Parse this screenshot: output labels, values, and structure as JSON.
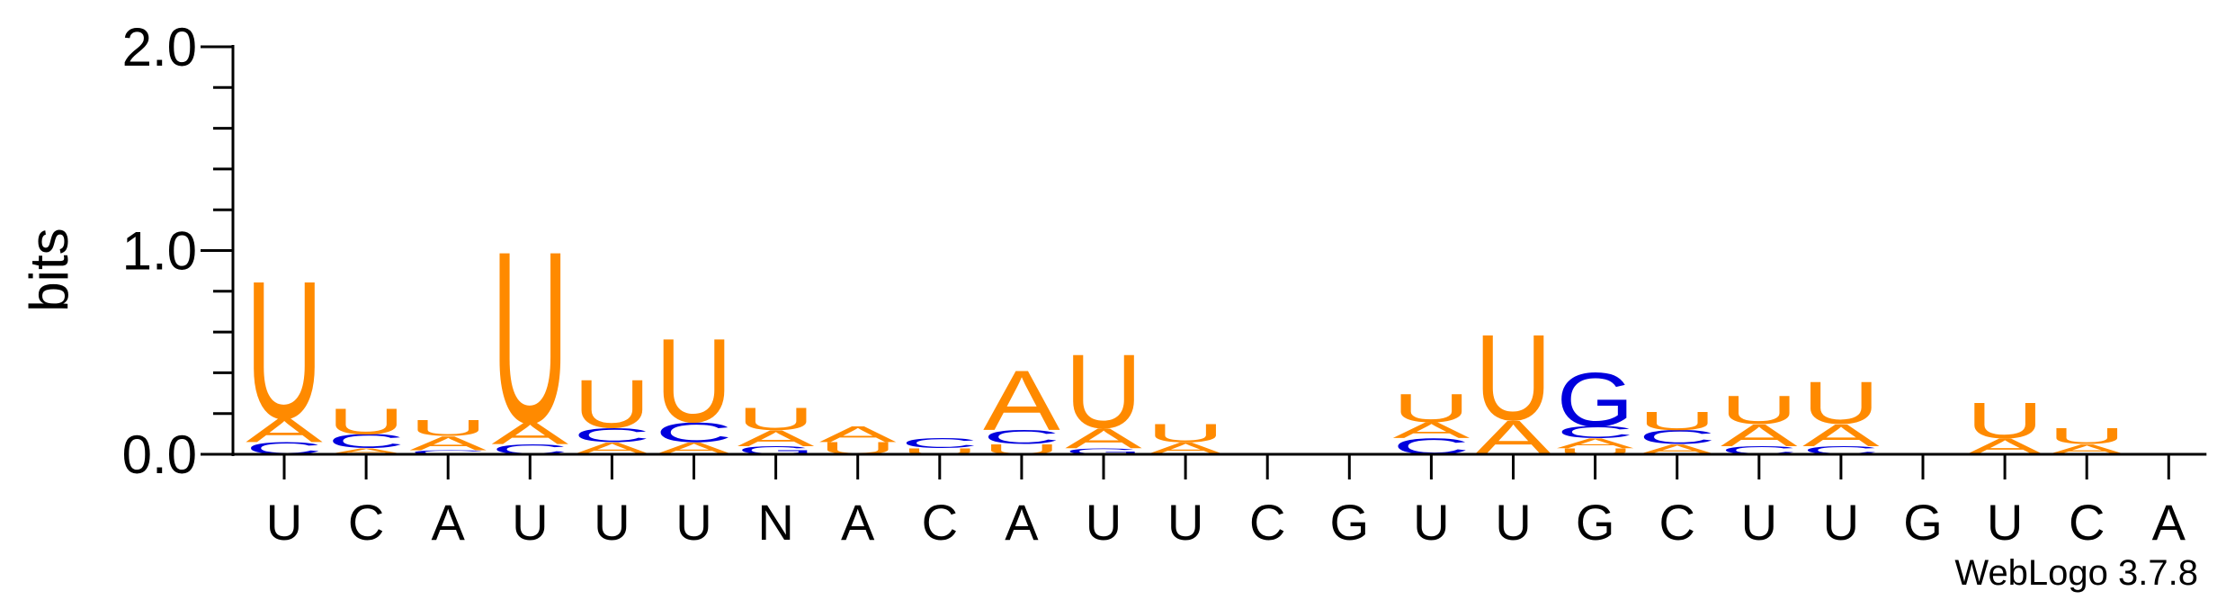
{
  "chart_data": {
    "type": "sequence-logo",
    "title": "",
    "xlabel": "",
    "ylabel": "bits",
    "ylim": [
      0,
      2
    ],
    "yticks": [
      {
        "value": 0,
        "label": "0.0"
      },
      {
        "value": 1,
        "label": "1.0"
      },
      {
        "value": 2,
        "label": "2.0"
      }
    ],
    "minor_tick_step": 0.2,
    "credit": "WebLogo 3.7.8",
    "colors": {
      "A": "#ff8a00",
      "U": "#ff8a00",
      "C": "#0000dd",
      "G": "#0000dd",
      "axis": "#000000"
    },
    "positions": [
      {
        "label": "U",
        "stack": [
          {
            "letter": "C",
            "bits": 0.06
          },
          {
            "letter": "A",
            "bits": 0.12
          },
          {
            "letter": "U",
            "bits": 0.69
          }
        ]
      },
      {
        "label": "C",
        "stack": [
          {
            "letter": "A",
            "bits": 0.03
          },
          {
            "letter": "C",
            "bits": 0.07
          },
          {
            "letter": "U",
            "bits": 0.13
          }
        ]
      },
      {
        "label": "A",
        "stack": [
          {
            "letter": "C",
            "bits": 0.02
          },
          {
            "letter": "A",
            "bits": 0.07
          },
          {
            "letter": "U",
            "bits": 0.08
          }
        ]
      },
      {
        "label": "U",
        "stack": [
          {
            "letter": "C",
            "bits": 0.05
          },
          {
            "letter": "A",
            "bits": 0.11
          },
          {
            "letter": "U",
            "bits": 0.86
          }
        ]
      },
      {
        "label": "U",
        "stack": [
          {
            "letter": "A",
            "bits": 0.06
          },
          {
            "letter": "C",
            "bits": 0.07
          },
          {
            "letter": "U",
            "bits": 0.24
          }
        ]
      },
      {
        "label": "U",
        "stack": [
          {
            "letter": "A",
            "bits": 0.06
          },
          {
            "letter": "C",
            "bits": 0.1
          },
          {
            "letter": "U",
            "bits": 0.42
          }
        ]
      },
      {
        "label": "N",
        "stack": [
          {
            "letter": "G",
            "bits": 0.04
          },
          {
            "letter": "A",
            "bits": 0.08
          },
          {
            "letter": "U",
            "bits": 0.11
          }
        ]
      },
      {
        "label": "A",
        "stack": [
          {
            "letter": "U",
            "bits": 0.06
          },
          {
            "letter": "A",
            "bits": 0.08
          }
        ]
      },
      {
        "label": "C",
        "stack": [
          {
            "letter": "U",
            "bits": 0.03
          },
          {
            "letter": "C",
            "bits": 0.05
          }
        ]
      },
      {
        "label": "A",
        "stack": [
          {
            "letter": "U",
            "bits": 0.05
          },
          {
            "letter": "C",
            "bits": 0.07
          },
          {
            "letter": "A",
            "bits": 0.3
          }
        ]
      },
      {
        "label": "U",
        "stack": [
          {
            "letter": "G",
            "bits": 0.03
          },
          {
            "letter": "A",
            "bits": 0.1
          },
          {
            "letter": "U",
            "bits": 0.37
          }
        ]
      },
      {
        "label": "U",
        "stack": [
          {
            "letter": "A",
            "bits": 0.06
          },
          {
            "letter": "U",
            "bits": 0.09
          }
        ]
      },
      {
        "label": "C",
        "stack": []
      },
      {
        "label": "G",
        "stack": []
      },
      {
        "label": "U",
        "stack": [
          {
            "letter": "C",
            "bits": 0.08
          },
          {
            "letter": "A",
            "bits": 0.08
          },
          {
            "letter": "U",
            "bits": 0.14
          }
        ]
      },
      {
        "label": "U",
        "stack": [
          {
            "letter": "A",
            "bits": 0.17
          },
          {
            "letter": "U",
            "bits": 0.43
          }
        ]
      },
      {
        "label": "G",
        "stack": [
          {
            "letter": "U",
            "bits": 0.03
          },
          {
            "letter": "A",
            "bits": 0.05
          },
          {
            "letter": "C",
            "bits": 0.06
          },
          {
            "letter": "G",
            "bits": 0.27
          }
        ]
      },
      {
        "label": "C",
        "stack": [
          {
            "letter": "A",
            "bits": 0.05
          },
          {
            "letter": "C",
            "bits": 0.07
          },
          {
            "letter": "U",
            "bits": 0.09
          }
        ]
      },
      {
        "label": "U",
        "stack": [
          {
            "letter": "C",
            "bits": 0.04
          },
          {
            "letter": "A",
            "bits": 0.11
          },
          {
            "letter": "U",
            "bits": 0.14
          }
        ]
      },
      {
        "label": "U",
        "stack": [
          {
            "letter": "C",
            "bits": 0.04
          },
          {
            "letter": "A",
            "bits": 0.11
          },
          {
            "letter": "U",
            "bits": 0.21
          }
        ]
      },
      {
        "label": "G",
        "stack": []
      },
      {
        "label": "U",
        "stack": [
          {
            "letter": "A",
            "bits": 0.08
          },
          {
            "letter": "U",
            "bits": 0.18
          }
        ]
      },
      {
        "label": "C",
        "stack": [
          {
            "letter": "A",
            "bits": 0.05
          },
          {
            "letter": "U",
            "bits": 0.08
          }
        ]
      },
      {
        "label": "A",
        "stack": []
      }
    ]
  }
}
